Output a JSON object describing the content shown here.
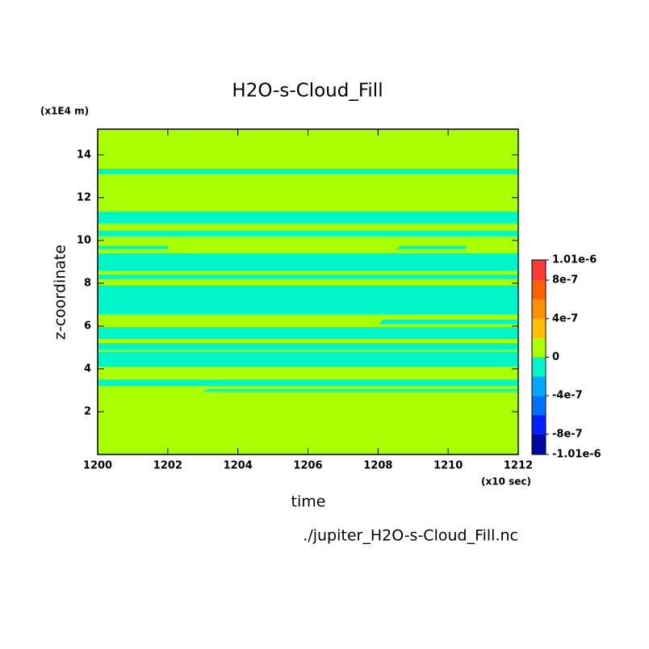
{
  "chart_data": {
    "type": "contour",
    "title": "H2O-s-Cloud_Fill",
    "x_label": "time",
    "y_label": "z-coordinate",
    "x_unit": "(x10 sec)",
    "y_unit": "(x1E4 m)",
    "source": "./jupiter_H2O-s-Cloud_Fill.nc",
    "xlim": [
      1200,
      1212
    ],
    "xticks": [
      1200,
      1202,
      1204,
      1206,
      1208,
      1210,
      1212
    ],
    "ylim": [
      0,
      15.2
    ],
    "yticks": [
      2,
      4,
      6,
      8,
      10,
      12,
      14
    ],
    "levels": [
      -1.01e-06,
      -8e-07,
      -6e-07,
      -4e-07,
      -2e-07,
      0,
      2e-07,
      4e-07,
      6e-07,
      8e-07,
      1.01e-06
    ],
    "colors": [
      "#0008a0",
      "#0020ff",
      "#0070ff",
      "#00aaff",
      "#00f5c8",
      "#aaff00",
      "#ffc000",
      "#ff9000",
      "#ff6000",
      "#ff3838"
    ],
    "colorbar_ticks": [
      {
        "value": -1.01e-06,
        "label": "-1.01e-6"
      },
      -8e-07,
      -4e-07,
      0,
      4e-07,
      8e-07,
      {
        "value": 1.01e-06,
        "label": "1.01e-6"
      }
    ],
    "base_value": 1e-07,
    "regions": [
      {
        "x": [
          1200,
          1212
        ],
        "z": [
          13.1,
          13.35
        ],
        "value": -1e-07
      },
      {
        "x": [
          1200,
          1212
        ],
        "z": [
          10.8,
          11.35
        ],
        "value": -1e-07
      },
      {
        "x": [
          1200,
          1212
        ],
        "z": [
          10.2,
          10.45
        ],
        "value": -1e-07
      },
      {
        "x": [
          1200,
          1202
        ],
        "z": [
          9.6,
          9.75
        ],
        "value": -1e-07
      },
      {
        "x": [
          1208.5,
          1210.5
        ],
        "z": [
          9.6,
          9.75
        ],
        "value": -1e-07
      },
      {
        "x": [
          1200,
          1212
        ],
        "z": [
          8.6,
          9.4
        ],
        "value": -1e-07
      },
      {
        "x": [
          1200,
          1212
        ],
        "z": [
          8.2,
          8.4
        ],
        "value": -1e-07
      },
      {
        "x": [
          1200,
          1212
        ],
        "z": [
          6.55,
          7.9
        ],
        "value": -1e-07
      },
      {
        "x": [
          1208,
          1212
        ],
        "z": [
          6.1,
          6.3
        ],
        "value": -1e-07
      },
      {
        "x": [
          1200,
          1212
        ],
        "z": [
          5.4,
          5.95
        ],
        "value": -1e-07
      },
      {
        "x": [
          1200,
          1212
        ],
        "z": [
          4.9,
          5.2
        ],
        "value": -1e-07
      },
      {
        "x": [
          1200,
          1212
        ],
        "z": [
          4.1,
          4.8
        ],
        "value": -1e-07
      },
      {
        "x": [
          1200,
          1212
        ],
        "z": [
          3.2,
          3.5
        ],
        "value": -1e-07
      },
      {
        "x": [
          1203,
          1212
        ],
        "z": [
          2.95,
          3.05
        ],
        "value": -1e-07
      }
    ]
  }
}
